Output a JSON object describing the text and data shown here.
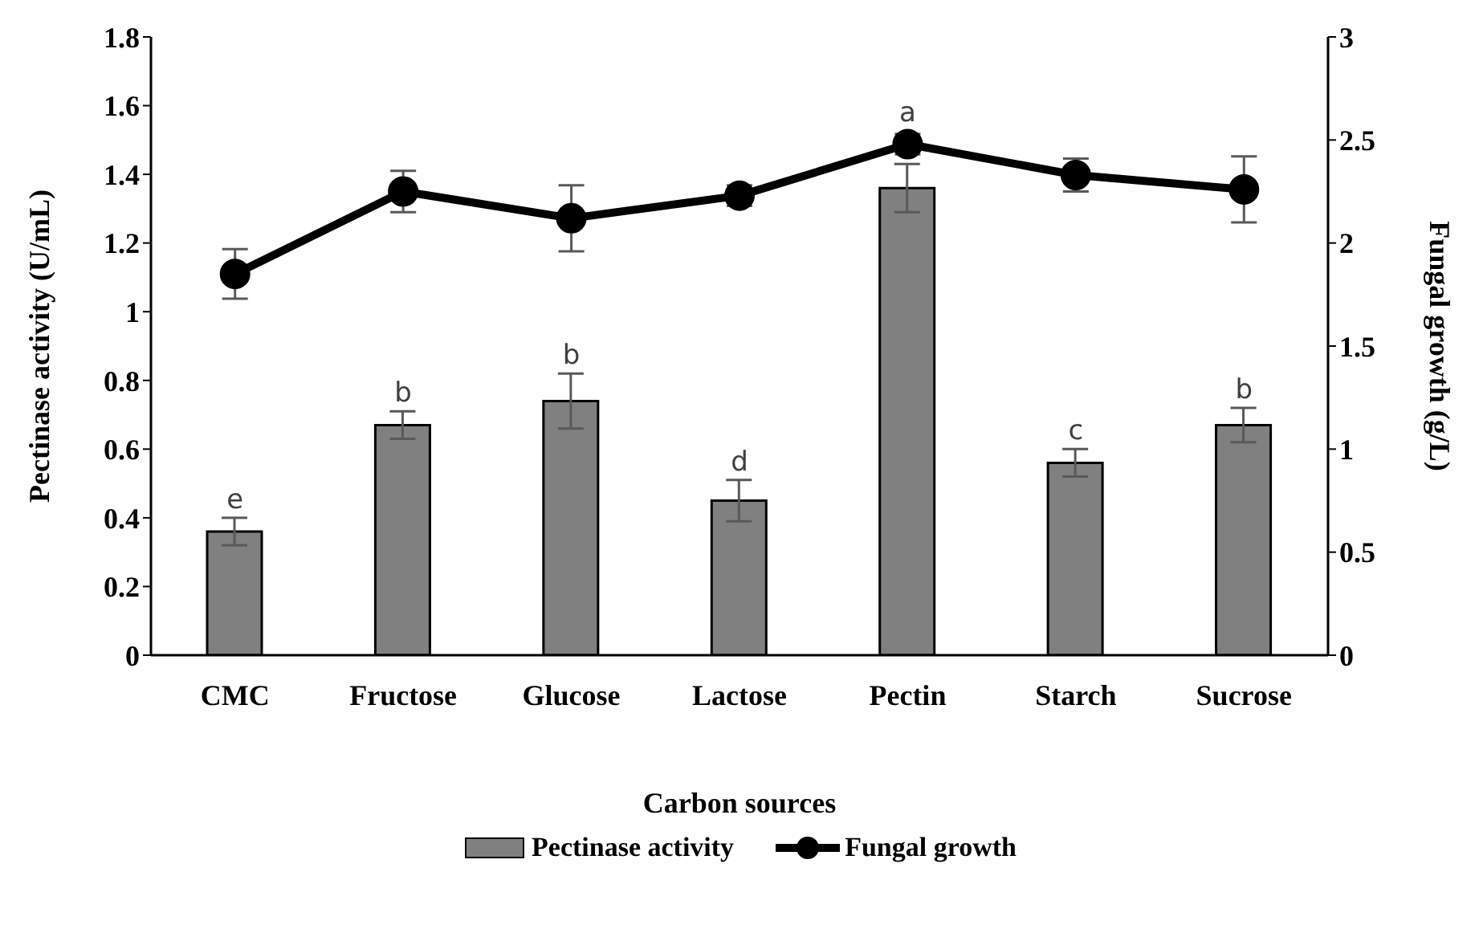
{
  "chart_data": {
    "type": "bar",
    "xlabel": "Carbon sources",
    "ylabel": "Pectinase activity (U/mL)",
    "y2label": "Fungal growth (g/L)",
    "categories": [
      "CMC",
      "Fructose",
      "Glucose",
      "Lactose",
      "Pectin",
      "Starch",
      "Sucrose"
    ],
    "series": [
      {
        "name": "Pectinase activity",
        "color": "#808080",
        "values": [
          0.36,
          0.67,
          0.74,
          0.45,
          1.36,
          0.56,
          0.67
        ],
        "errors": [
          0.04,
          0.04,
          0.08,
          0.06,
          0.07,
          0.04,
          0.05
        ]
      },
      {
        "name": "Fungal growth",
        "type": "line",
        "axis": "y2",
        "color": "#000000",
        "marker": "circle",
        "values": [
          1.85,
          2.25,
          2.12,
          2.23,
          2.48,
          2.33,
          2.26
        ],
        "errors": [
          0.12,
          0.1,
          0.16,
          0.05,
          0.05,
          0.08,
          0.16
        ]
      }
    ],
    "ylim": [
      0,
      1.8
    ],
    "yticks": [
      0,
      0.2,
      0.4,
      0.6,
      0.8,
      1,
      1.2,
      1.4,
      1.6,
      1.8
    ],
    "y2lim": [
      0,
      3
    ],
    "y2ticks": [
      0,
      0.5,
      1,
      1.5,
      2,
      2.5,
      3
    ],
    "annotations": [
      "e",
      "b",
      "b",
      "d",
      "a",
      "c",
      "b"
    ],
    "legend": "bottom"
  }
}
